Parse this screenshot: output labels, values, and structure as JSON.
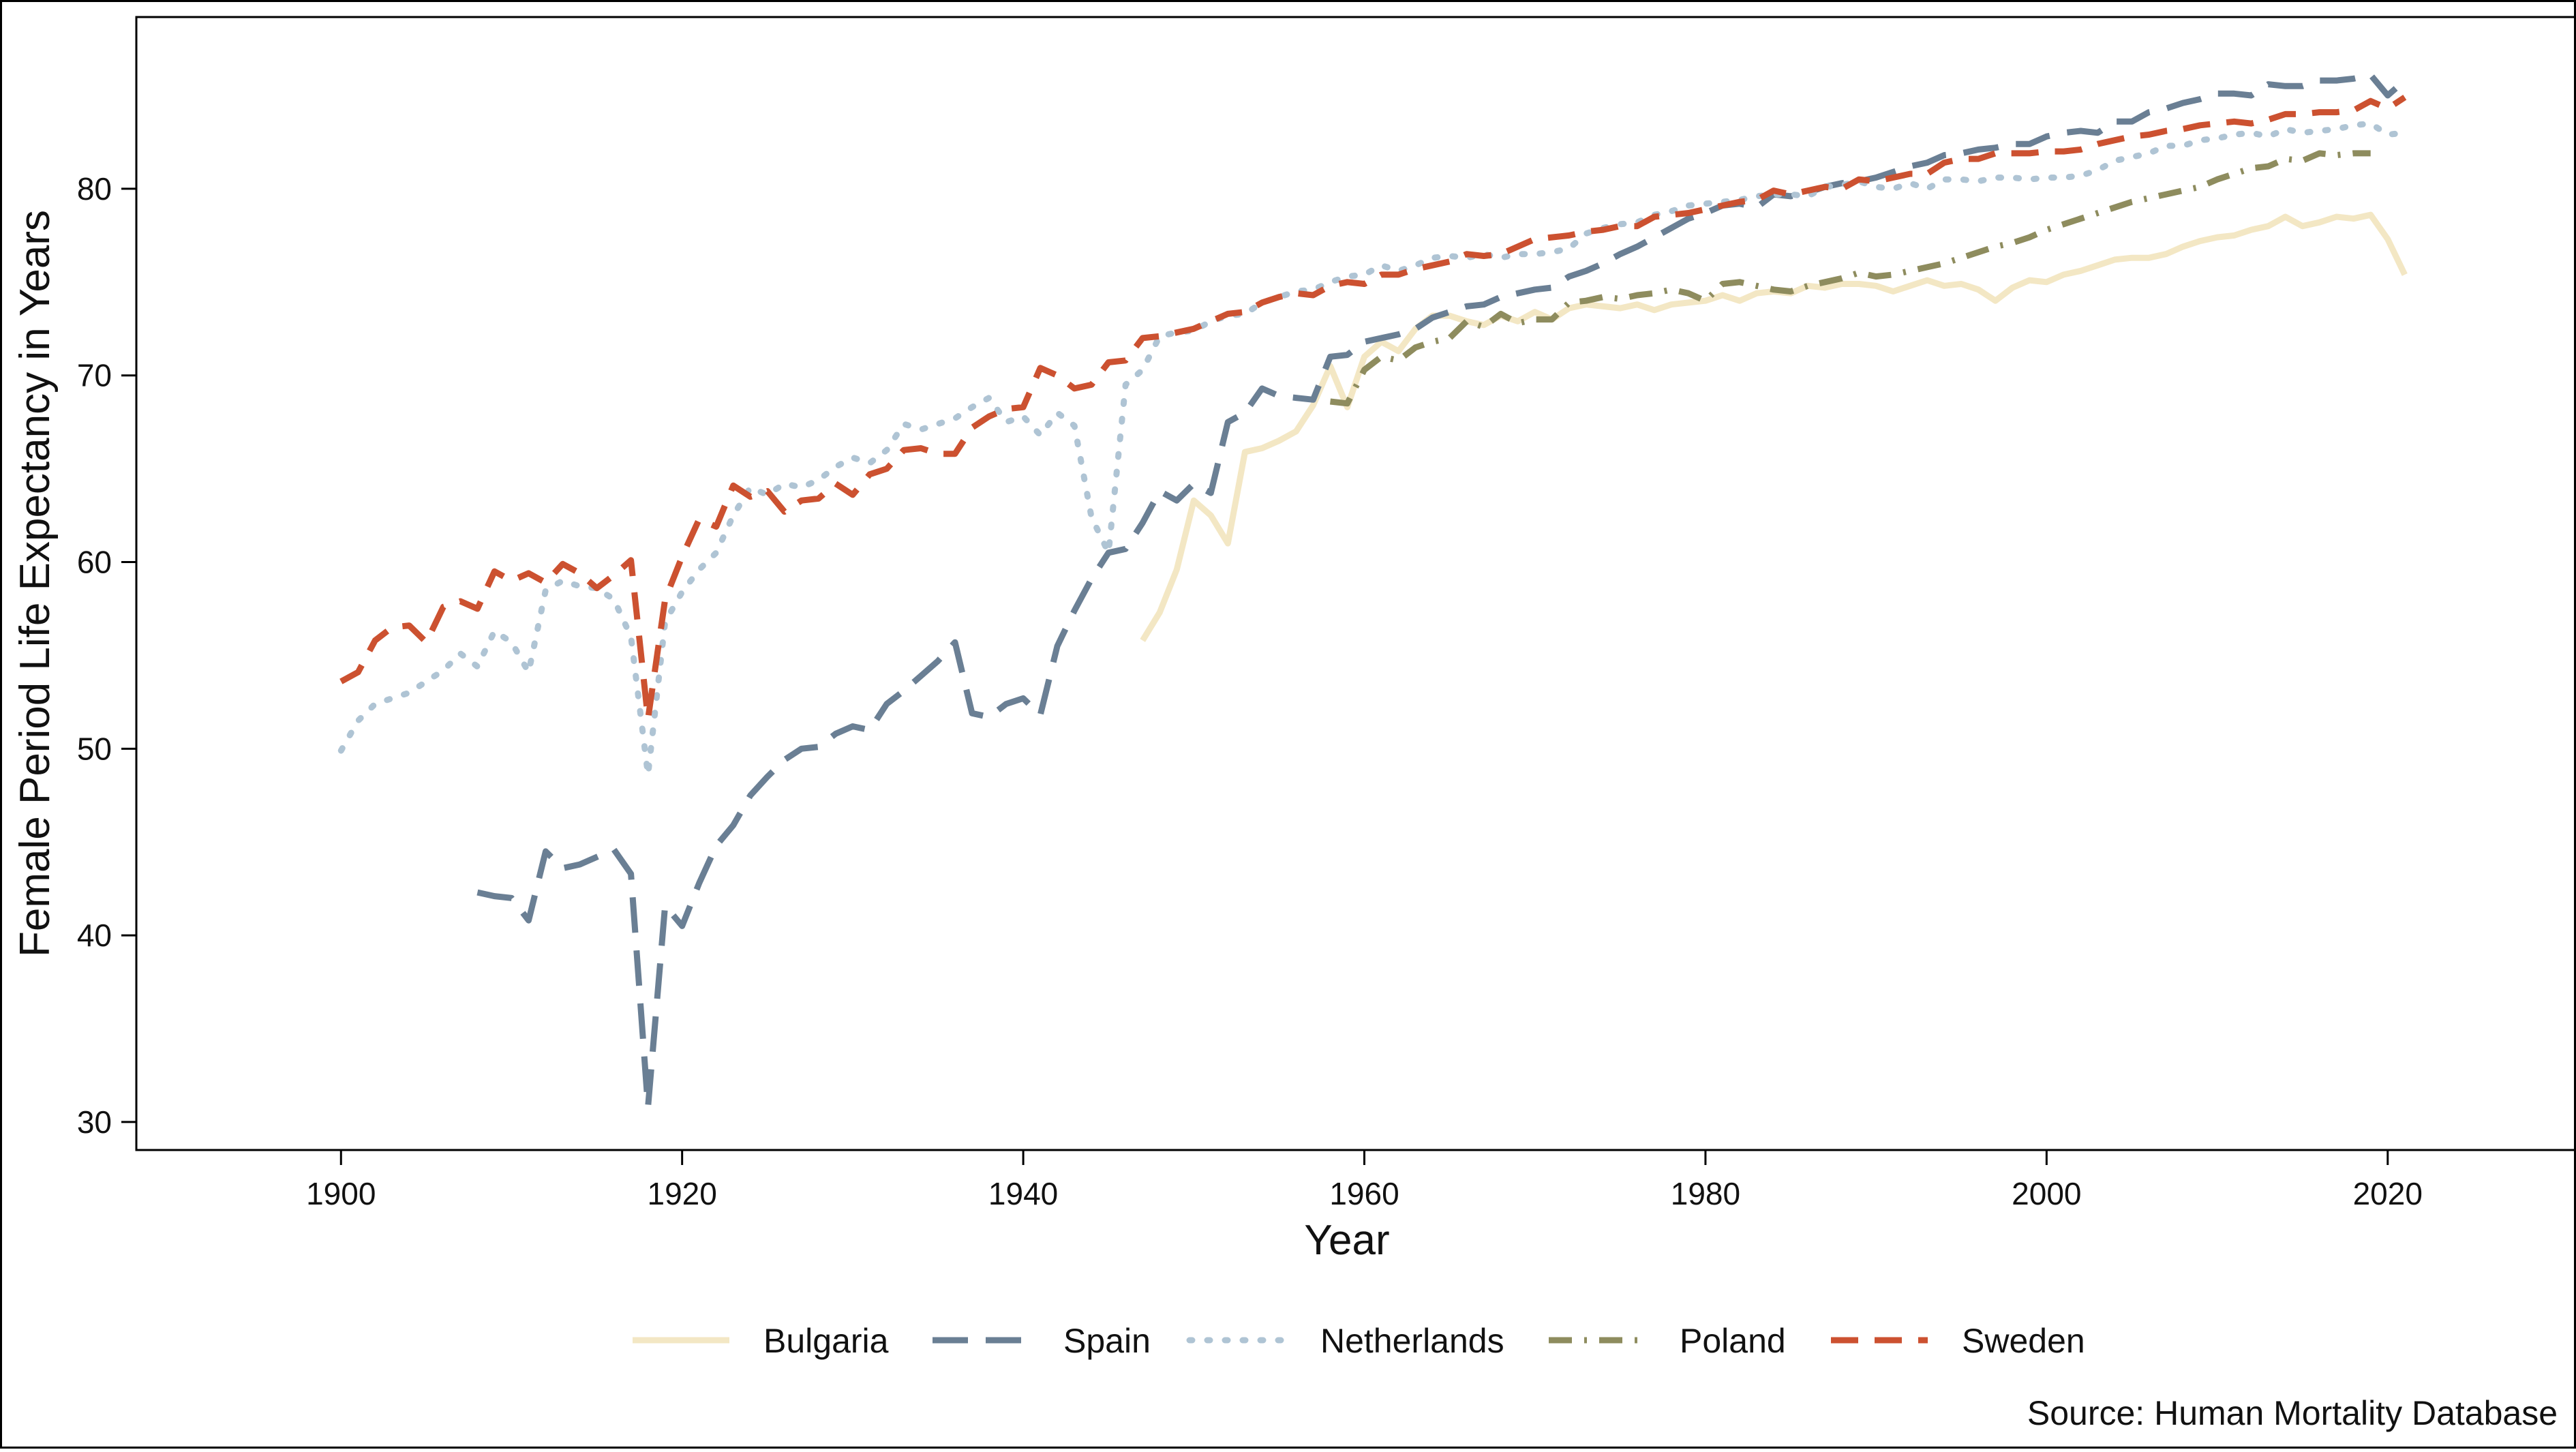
{
  "chart_data": {
    "type": "line",
    "xlabel": "Year",
    "ylabel": "Female Period Life Expectancy in Years",
    "xlim": [
      1888,
      2031
    ],
    "ylim": [
      28.5,
      89.2
    ],
    "x_ticks": [
      1900,
      1920,
      1940,
      1960,
      1980,
      2000,
      2020
    ],
    "y_ticks": [
      30,
      40,
      50,
      60,
      70,
      80
    ],
    "grid": false,
    "legend_position": "bottom",
    "caption": "Source: Human Mortality Database",
    "series": [
      {
        "name": "Bulgaria",
        "color": "#F3E7C4",
        "dash": "solid",
        "x": [
          1947,
          1948,
          1949,
          1950,
          1951,
          1952,
          1953,
          1954,
          1955,
          1956,
          1957,
          1958,
          1959,
          1960,
          1961,
          1962,
          1963,
          1964,
          1965,
          1966,
          1967,
          1968,
          1969,
          1970,
          1971,
          1972,
          1973,
          1974,
          1975,
          1976,
          1977,
          1978,
          1979,
          1980,
          1981,
          1982,
          1983,
          1984,
          1985,
          1986,
          1987,
          1988,
          1989,
          1990,
          1991,
          1992,
          1993,
          1994,
          1995,
          1996,
          1997,
          1998,
          1999,
          2000,
          2001,
          2002,
          2003,
          2004,
          2005,
          2006,
          2007,
          2008,
          2009,
          2010,
          2011,
          2012,
          2013,
          2014,
          2015,
          2016,
          2017,
          2018,
          2019,
          2020,
          2021
        ],
        "y": [
          55.8,
          57.3,
          59.6,
          63.3,
          62.5,
          61.0,
          65.9,
          66.1,
          66.5,
          67.0,
          68.4,
          70.5,
          68.3,
          71.0,
          71.8,
          71.3,
          72.5,
          73.2,
          73.2,
          72.9,
          72.7,
          73.2,
          72.9,
          73.4,
          73.0,
          73.6,
          73.8,
          73.7,
          73.6,
          73.8,
          73.5,
          73.8,
          73.9,
          74.0,
          74.3,
          74.0,
          74.4,
          74.5,
          74.4,
          74.8,
          74.7,
          74.9,
          74.9,
          74.8,
          74.5,
          74.8,
          75.1,
          74.8,
          74.9,
          74.6,
          74.0,
          74.7,
          75.1,
          75.0,
          75.4,
          75.6,
          75.9,
          76.2,
          76.3,
          76.3,
          76.5,
          76.9,
          77.2,
          77.4,
          77.5,
          77.8,
          78.0,
          78.5,
          78.0,
          78.2,
          78.5,
          78.4,
          78.6,
          77.3,
          75.4
        ]
      },
      {
        "name": "Spain",
        "color": "#6A7F94",
        "dash": "long-dash",
        "x": [
          1908,
          1909,
          1910,
          1911,
          1912,
          1913,
          1914,
          1915,
          1916,
          1917,
          1918,
          1919,
          1920,
          1921,
          1922,
          1923,
          1924,
          1925,
          1926,
          1927,
          1928,
          1929,
          1930,
          1931,
          1932,
          1933,
          1934,
          1935,
          1936,
          1937,
          1938,
          1939,
          1940,
          1941,
          1942,
          1943,
          1944,
          1945,
          1946,
          1947,
          1948,
          1949,
          1950,
          1951,
          1952,
          1953,
          1954,
          1955,
          1956,
          1957,
          1958,
          1959,
          1960,
          1961,
          1962,
          1963,
          1964,
          1965,
          1966,
          1967,
          1968,
          1969,
          1970,
          1971,
          1972,
          1973,
          1974,
          1975,
          1976,
          1977,
          1978,
          1979,
          1980,
          1981,
          1982,
          1983,
          1984,
          1985,
          1986,
          1987,
          1988,
          1989,
          1990,
          1991,
          1992,
          1993,
          1994,
          1995,
          1996,
          1997,
          1998,
          1999,
          2000,
          2001,
          2002,
          2003,
          2004,
          2005,
          2006,
          2007,
          2008,
          2009,
          2010,
          2011,
          2012,
          2013,
          2014,
          2015,
          2016,
          2017,
          2018,
          2019,
          2020,
          2021
        ],
        "y": [
          42.3,
          42.1,
          42.0,
          40.8,
          44.5,
          43.6,
          43.8,
          44.2,
          44.6,
          43.3,
          30.8,
          41.6,
          40.5,
          42.8,
          44.8,
          45.9,
          47.5,
          48.5,
          49.4,
          50.0,
          50.1,
          50.8,
          51.2,
          51.0,
          52.4,
          53.1,
          53.9,
          54.7,
          55.7,
          51.9,
          51.7,
          52.4,
          52.7,
          51.8,
          55.5,
          57.4,
          59.1,
          60.5,
          60.7,
          62.1,
          63.8,
          63.3,
          64.2,
          63.7,
          67.5,
          68.0,
          69.3,
          68.9,
          68.8,
          68.7,
          71.0,
          71.1,
          71.8,
          72.0,
          72.2,
          72.5,
          73.1,
          73.4,
          73.7,
          73.8,
          74.2,
          74.4,
          74.6,
          74.7,
          75.3,
          75.6,
          76.0,
          76.5,
          76.9,
          77.4,
          77.9,
          78.4,
          78.7,
          79.1,
          79.2,
          79.0,
          79.7,
          79.6,
          79.8,
          80.1,
          80.3,
          80.4,
          80.6,
          80.9,
          81.2,
          81.4,
          81.8,
          81.9,
          82.1,
          82.2,
          82.4,
          82.4,
          82.8,
          83.0,
          83.1,
          83.0,
          83.6,
          83.6,
          84.1,
          84.3,
          84.6,
          84.8,
          85.1,
          85.1,
          85.0,
          85.6,
          85.5,
          85.5,
          85.8,
          85.8,
          85.9,
          86.1,
          85.0,
          85.8
        ]
      },
      {
        "name": "Netherlands",
        "color": "#AFC4D4",
        "dash": "dot",
        "x": [
          1900,
          1901,
          1902,
          1903,
          1904,
          1905,
          1906,
          1907,
          1908,
          1909,
          1910,
          1911,
          1912,
          1913,
          1914,
          1915,
          1916,
          1917,
          1918,
          1919,
          1920,
          1921,
          1922,
          1923,
          1924,
          1925,
          1926,
          1927,
          1928,
          1929,
          1930,
          1931,
          1932,
          1933,
          1934,
          1935,
          1936,
          1937,
          1938,
          1939,
          1940,
          1941,
          1942,
          1943,
          1944,
          1945,
          1946,
          1947,
          1948,
          1949,
          1950,
          1951,
          1952,
          1953,
          1954,
          1955,
          1956,
          1957,
          1958,
          1959,
          1960,
          1961,
          1962,
          1963,
          1964,
          1965,
          1966,
          1967,
          1968,
          1969,
          1970,
          1971,
          1972,
          1973,
          1974,
          1975,
          1976,
          1977,
          1978,
          1979,
          1980,
          1981,
          1982,
          1983,
          1984,
          1985,
          1986,
          1987,
          1988,
          1989,
          1990,
          1991,
          1992,
          1993,
          1994,
          1995,
          1996,
          1997,
          1998,
          1999,
          2000,
          2001,
          2002,
          2003,
          2004,
          2005,
          2006,
          2007,
          2008,
          2009,
          2010,
          2011,
          2012,
          2013,
          2014,
          2015,
          2016,
          2017,
          2018,
          2019,
          2020,
          2021
        ],
        "y": [
          49.9,
          51.5,
          52.4,
          52.7,
          53.0,
          53.6,
          54.2,
          55.1,
          54.4,
          56.3,
          55.7,
          54.1,
          58.5,
          59.0,
          58.7,
          58.6,
          58.0,
          56.0,
          48.6,
          56.8,
          58.4,
          59.6,
          60.5,
          62.5,
          64.0,
          63.6,
          64.2,
          64.0,
          64.4,
          65.1,
          65.6,
          65.3,
          66.0,
          67.4,
          67.1,
          67.4,
          67.7,
          68.3,
          68.8,
          67.5,
          67.8,
          66.8,
          68.0,
          67.3,
          62.4,
          60.5,
          69.5,
          70.3,
          72.1,
          72.3,
          72.4,
          72.9,
          73.2,
          73.3,
          73.9,
          74.2,
          74.5,
          74.6,
          75.0,
          75.3,
          75.4,
          75.9,
          75.6,
          75.9,
          76.3,
          76.4,
          76.3,
          76.5,
          76.3,
          76.5,
          76.5,
          76.6,
          76.8,
          77.6,
          77.9,
          78.1,
          78.2,
          78.6,
          78.8,
          79.1,
          79.2,
          79.3,
          79.4,
          79.6,
          79.7,
          79.7,
          79.6,
          80.1,
          80.2,
          80.4,
          80.1,
          80.0,
          80.3,
          80.0,
          80.5,
          80.5,
          80.4,
          80.6,
          80.6,
          80.5,
          80.6,
          80.6,
          80.7,
          81.0,
          81.5,
          81.7,
          81.9,
          82.3,
          82.3,
          82.6,
          82.7,
          82.9,
          83.0,
          82.8,
          83.2,
          83.0,
          83.1,
          83.2,
          83.4,
          83.5,
          82.9,
          83.0
        ]
      },
      {
        "name": "Poland",
        "color": "#8E8C5E",
        "dash": "dash-dot",
        "x": [
          1958,
          1959,
          1960,
          1961,
          1962,
          1963,
          1964,
          1965,
          1966,
          1967,
          1968,
          1969,
          1970,
          1971,
          1972,
          1973,
          1974,
          1975,
          1976,
          1977,
          1978,
          1979,
          1980,
          1981,
          1982,
          1983,
          1984,
          1985,
          1986,
          1987,
          1988,
          1989,
          1990,
          1991,
          1992,
          1993,
          1994,
          1995,
          1996,
          1997,
          1998,
          1999,
          2000,
          2001,
          2002,
          2003,
          2004,
          2005,
          2006,
          2007,
          2008,
          2009,
          2010,
          2011,
          2012,
          2013,
          2014,
          2015,
          2016,
          2017,
          2018,
          2019
        ],
        "y": [
          68.6,
          68.5,
          70.3,
          71.0,
          70.8,
          71.5,
          71.8,
          72.0,
          72.9,
          72.6,
          73.3,
          72.8,
          73.0,
          73.0,
          73.9,
          74.0,
          74.2,
          74.1,
          74.3,
          74.4,
          74.6,
          74.4,
          74.0,
          74.9,
          75.0,
          74.8,
          74.6,
          74.5,
          74.8,
          75.0,
          75.2,
          75.5,
          75.3,
          75.4,
          75.6,
          75.8,
          76.0,
          76.3,
          76.6,
          76.9,
          77.1,
          77.4,
          77.8,
          78.1,
          78.4,
          78.7,
          79.0,
          79.3,
          79.5,
          79.7,
          79.9,
          80.1,
          80.5,
          80.8,
          81.1,
          81.2,
          81.6,
          81.5,
          81.9,
          81.8,
          81.9,
          81.9
        ]
      },
      {
        "name": "Sweden",
        "color": "#CC5130",
        "dash": "dash",
        "x": [
          1900,
          1901,
          1902,
          1903,
          1904,
          1905,
          1906,
          1907,
          1908,
          1909,
          1910,
          1911,
          1912,
          1913,
          1914,
          1915,
          1916,
          1917,
          1918,
          1919,
          1920,
          1921,
          1922,
          1923,
          1924,
          1925,
          1926,
          1927,
          1928,
          1929,
          1930,
          1931,
          1932,
          1933,
          1934,
          1935,
          1936,
          1937,
          1938,
          1939,
          1940,
          1941,
          1942,
          1943,
          1944,
          1945,
          1946,
          1947,
          1948,
          1949,
          1950,
          1951,
          1952,
          1953,
          1954,
          1955,
          1956,
          1957,
          1958,
          1959,
          1960,
          1961,
          1962,
          1963,
          1964,
          1965,
          1966,
          1967,
          1968,
          1969,
          1970,
          1971,
          1972,
          1973,
          1974,
          1975,
          1976,
          1977,
          1978,
          1979,
          1980,
          1981,
          1982,
          1983,
          1984,
          1985,
          1986,
          1987,
          1988,
          1989,
          1990,
          1991,
          1992,
          1993,
          1994,
          1995,
          1996,
          1997,
          1998,
          1999,
          2000,
          2001,
          2002,
          2003,
          2004,
          2005,
          2006,
          2007,
          2008,
          2009,
          2010,
          2011,
          2012,
          2013,
          2014,
          2015,
          2016,
          2017,
          2018,
          2019,
          2020,
          2021
        ],
        "y": [
          53.6,
          54.1,
          55.8,
          56.5,
          56.6,
          55.7,
          57.6,
          57.9,
          57.5,
          59.5,
          59.0,
          59.4,
          58.9,
          59.9,
          59.4,
          58.6,
          59.3,
          60.1,
          51.6,
          58.0,
          60.3,
          62.3,
          61.9,
          64.1,
          63.5,
          63.8,
          62.7,
          63.3,
          63.4,
          64.2,
          63.6,
          64.7,
          65.0,
          66.0,
          66.1,
          65.8,
          65.8,
          67.2,
          67.8,
          68.2,
          68.3,
          70.4,
          70.0,
          69.3,
          69.5,
          70.7,
          70.8,
          72.0,
          72.1,
          72.3,
          72.5,
          72.9,
          73.3,
          73.4,
          73.9,
          74.2,
          74.4,
          74.3,
          74.8,
          75.0,
          74.9,
          75.4,
          75.4,
          75.7,
          75.9,
          76.1,
          76.5,
          76.4,
          76.5,
          76.9,
          77.3,
          77.4,
          77.5,
          77.7,
          77.8,
          78.0,
          78.0,
          78.5,
          78.6,
          78.7,
          78.9,
          79.1,
          79.3,
          79.4,
          79.9,
          79.7,
          79.9,
          80.1,
          80.0,
          80.5,
          80.4,
          80.6,
          80.8,
          80.8,
          81.4,
          81.6,
          81.6,
          81.9,
          81.9,
          81.9,
          82.0,
          82.0,
          82.1,
          82.4,
          82.6,
          82.8,
          82.9,
          83.1,
          83.2,
          83.4,
          83.5,
          83.6,
          83.5,
          83.7,
          84.0,
          84.0,
          84.1,
          84.1,
          84.2,
          84.7,
          84.3,
          84.9
        ]
      }
    ]
  }
}
